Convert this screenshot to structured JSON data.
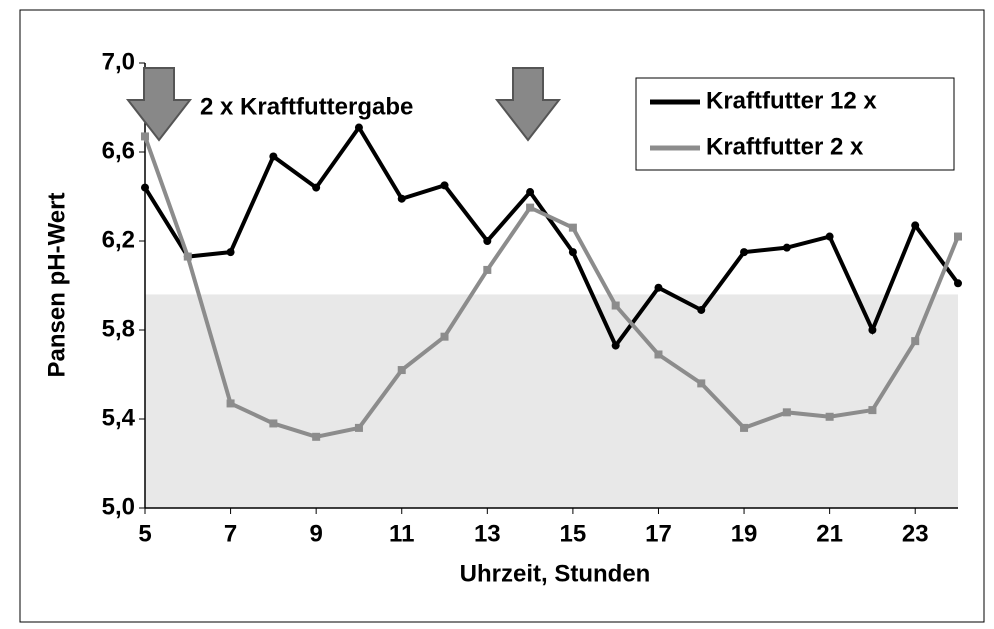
{
  "chart_data": {
    "type": "line",
    "ylabel": "Pansen pH-Wert",
    "xlabel": "Uhrzeit, Stunden",
    "annotation": "2 x Kraftfuttergabe",
    "x": [
      5,
      6,
      7,
      8,
      9,
      10,
      11,
      12,
      13,
      14,
      15,
      16,
      17,
      18,
      19,
      20,
      21,
      22,
      23,
      24
    ],
    "series": [
      {
        "name": "Kraftfutter 12 x",
        "color": "#000000",
        "values": [
          6.44,
          6.13,
          6.15,
          6.58,
          6.44,
          6.71,
          6.39,
          6.45,
          6.2,
          6.42,
          6.15,
          5.73,
          5.99,
          5.89,
          6.15,
          6.17,
          6.22,
          5.8,
          6.27,
          6.01
        ]
      },
      {
        "name": "Kraftfutter 2 x",
        "color": "#8c8c8c",
        "values": [
          6.67,
          6.13,
          5.47,
          5.38,
          5.32,
          5.36,
          5.62,
          5.77,
          6.07,
          6.35,
          6.26,
          5.91,
          5.69,
          5.56,
          5.36,
          5.43,
          5.41,
          5.44,
          5.75,
          6.22
        ]
      }
    ],
    "shaded_ylim": [
      5.0,
      5.96
    ],
    "shaded_color": "#e8e8e8",
    "xlim": [
      5,
      24
    ],
    "xticks": [
      5,
      7,
      9,
      11,
      13,
      15,
      17,
      19,
      21,
      23
    ],
    "ylim": [
      5.0,
      7.0
    ],
    "yticks": [
      {
        "value": 5.0,
        "label": "5,0"
      },
      {
        "value": 5.4,
        "label": "5,4"
      },
      {
        "value": 5.8,
        "label": "5,8"
      },
      {
        "value": 6.2,
        "label": "6,2"
      },
      {
        "value": 6.6,
        "label": "6,6"
      },
      {
        "value": 7.0,
        "label": "7,0"
      }
    ],
    "legend": "upper right"
  }
}
